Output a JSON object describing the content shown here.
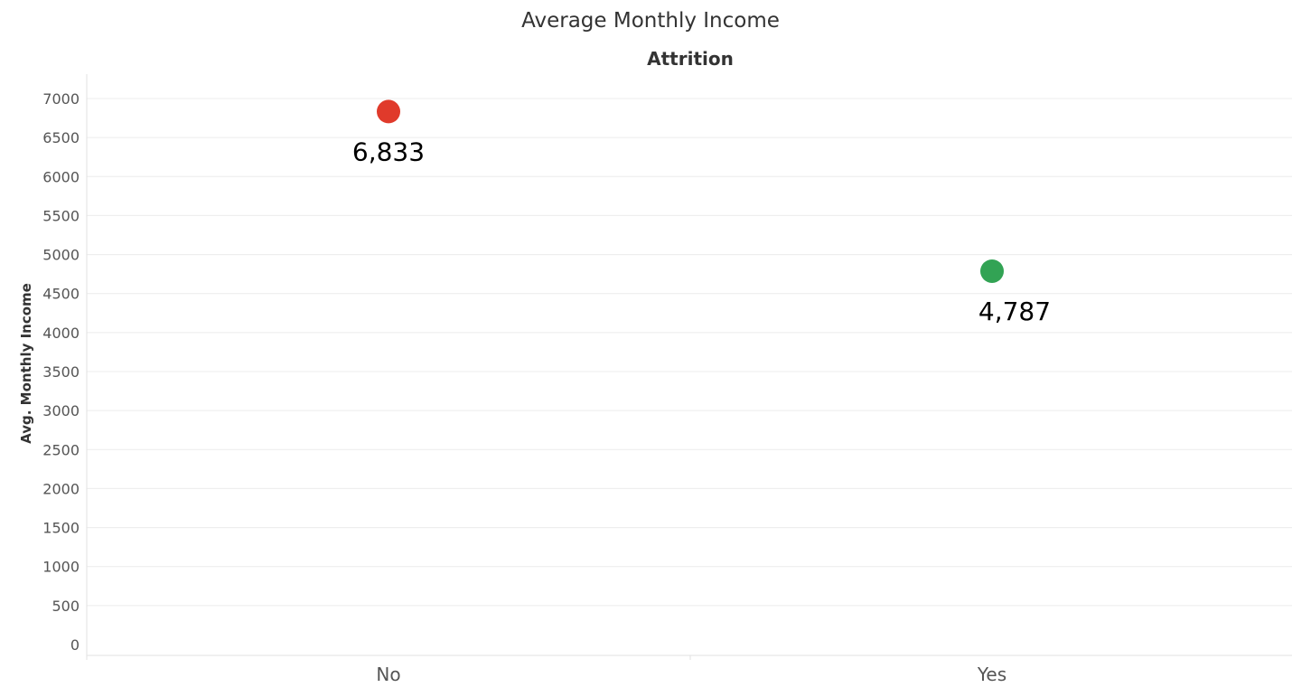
{
  "chart_data": {
    "type": "scatter",
    "title": "Average Monthly Income",
    "column_header": "Attrition",
    "ylabel": "Avg. Monthly Income",
    "xlabel": "",
    "categories": [
      "No",
      "Yes"
    ],
    "values": [
      6833,
      4787
    ],
    "value_labels": [
      "6,833",
      "4,787"
    ],
    "point_colors": [
      "#e03a2b",
      "#32a354"
    ],
    "yticks": [
      0,
      500,
      1000,
      1500,
      2000,
      2500,
      3000,
      3500,
      4000,
      4500,
      5000,
      5500,
      6000,
      6500,
      7000
    ],
    "ylim": [
      0,
      7000
    ],
    "grid": true,
    "legend": "none"
  }
}
